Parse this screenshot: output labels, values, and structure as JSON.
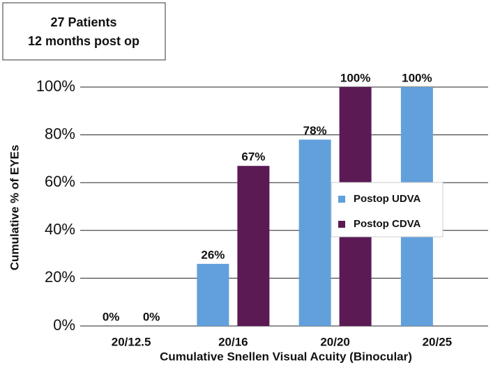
{
  "chart_data": {
    "type": "bar",
    "annotation": [
      "27 Patients",
      "12 months post op"
    ],
    "xlabel": "Cumulative Snellen Visual Acuity (Binocular)",
    "ylabel": "Cumulative % of EYEs",
    "categories": [
      "20/12.5",
      "20/16",
      "20/20",
      "20/25"
    ],
    "series": [
      {
        "name": "Postop UDVA",
        "color": "#62a0dc",
        "values": [
          0,
          26,
          78,
          100
        ],
        "value_labels": [
          "0%",
          "26%",
          "78%",
          "100%"
        ]
      },
      {
        "name": "Postop CDVA",
        "color": "#5c1a55",
        "values": [
          0,
          67,
          100,
          null
        ],
        "value_labels": [
          "0%",
          "67%",
          "100%",
          null
        ]
      }
    ],
    "ylim": [
      0,
      100
    ],
    "yticks": [
      {
        "value": 0,
        "label": "0%"
      },
      {
        "value": 20,
        "label": "20%"
      },
      {
        "value": 40,
        "label": "40%"
      },
      {
        "value": 60,
        "label": "60%"
      },
      {
        "value": 80,
        "label": "80%"
      },
      {
        "value": 100,
        "label": "100%"
      }
    ],
    "grid": true,
    "legend": "right"
  }
}
